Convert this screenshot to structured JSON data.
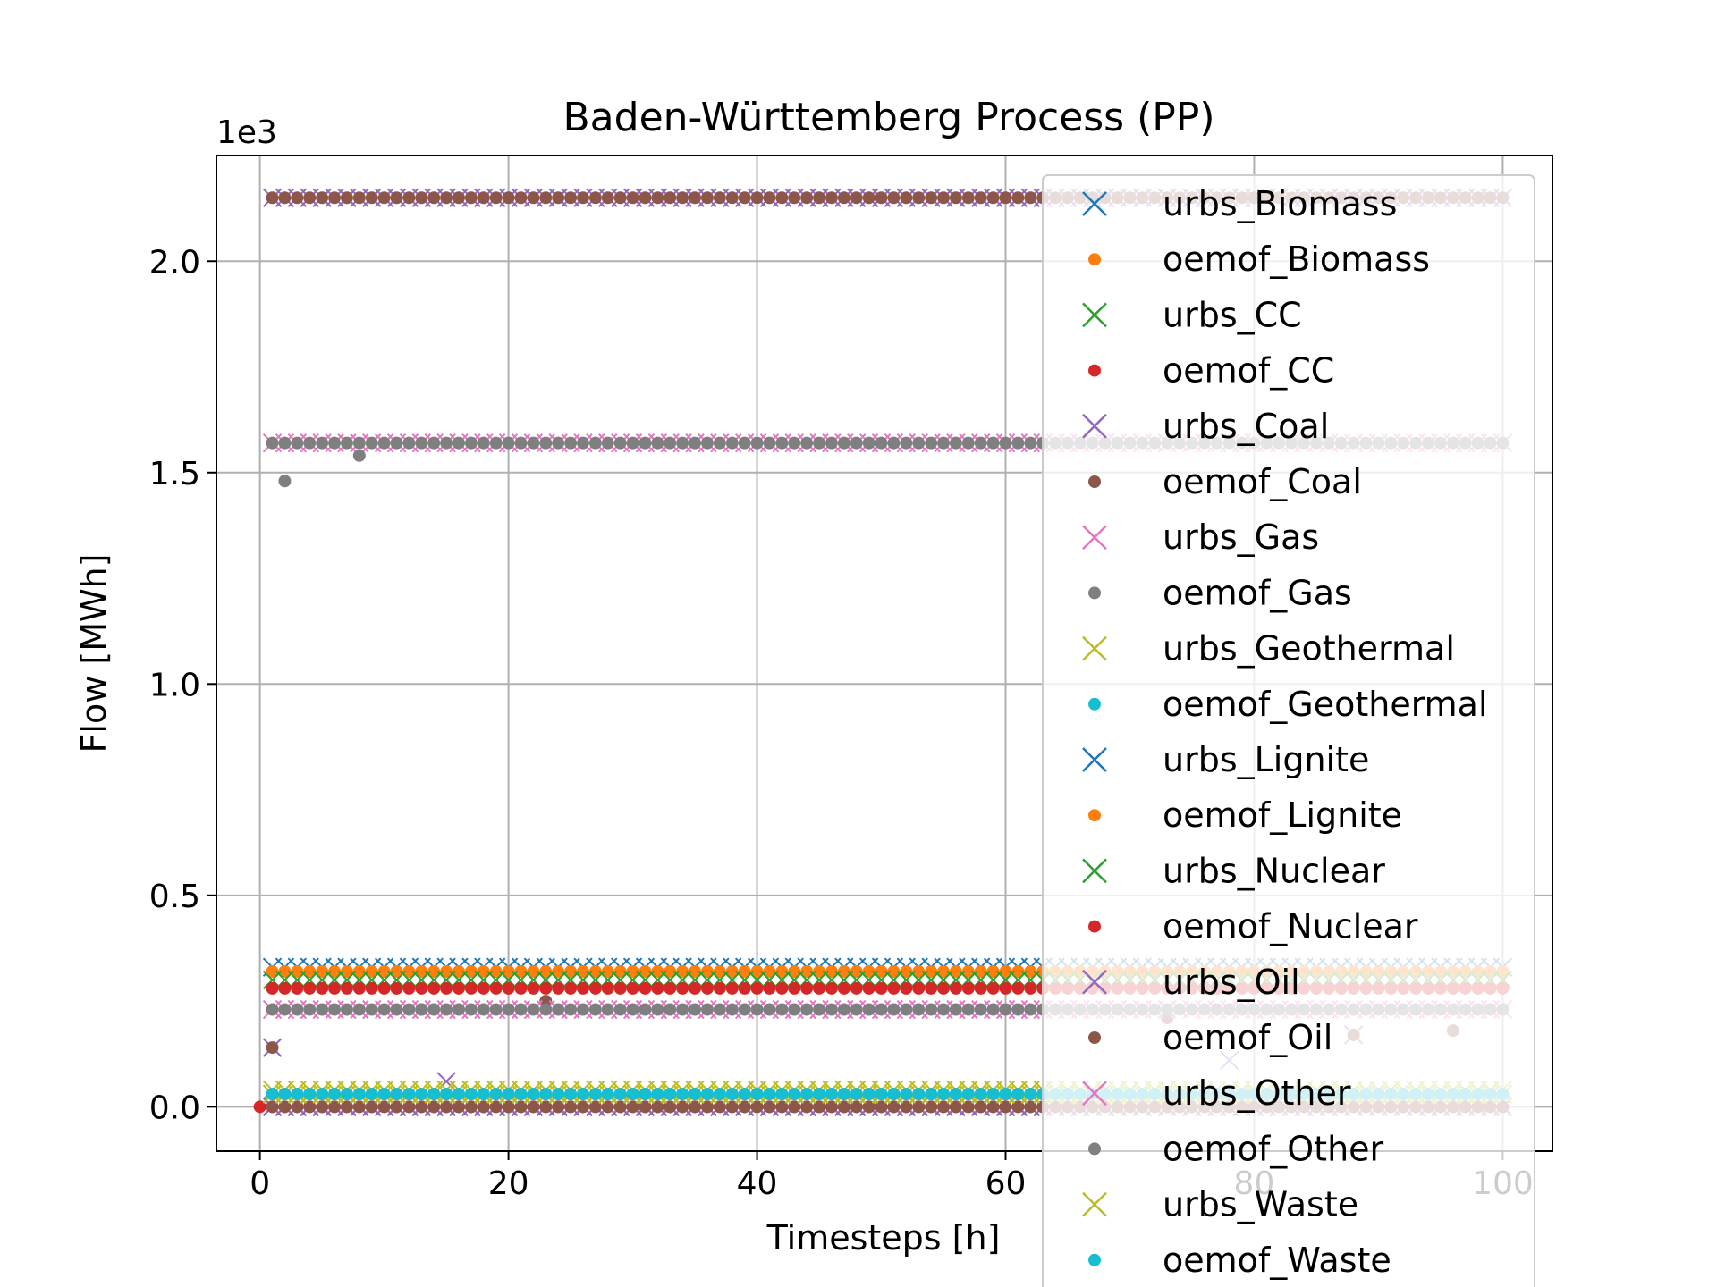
{
  "chart_data": {
    "type": "scatter",
    "title": "Baden-Württemberg Process (PP)",
    "xlabel": "Timesteps [h]",
    "ylabel": "Flow [MWh]",
    "y_multiplier_label": "1e3",
    "xlim": [
      -3.5,
      104
    ],
    "ylim": [
      -0.105,
      2.25
    ],
    "xticks": [
      0,
      20,
      40,
      60,
      80,
      100
    ],
    "yticks": [
      0.0,
      0.5,
      1.0,
      1.5,
      2.0
    ],
    "xtick_labels": [
      "0",
      "20",
      "40",
      "60",
      "80",
      "100"
    ],
    "ytick_labels": [
      "0.0",
      "0.5",
      "1.0",
      "1.5",
      "2.0"
    ],
    "grid": true,
    "legend_placement": "top-right",
    "x_range": [
      1,
      100
    ],
    "series": [
      {
        "name": "urbs_Biomass",
        "marker": "x",
        "color": "#1f77b4",
        "level": 0.33
      },
      {
        "name": "oemof_Biomass",
        "marker": "o",
        "color": "#ff7f0e",
        "level": 0.32
      },
      {
        "name": "urbs_CC",
        "marker": "x",
        "color": "#2ca02c",
        "level": 0.3
      },
      {
        "name": "oemof_CC",
        "marker": "o",
        "color": "#d62728",
        "level": 0.28,
        "outliers": [
          [
            0.0,
            0.0
          ]
        ]
      },
      {
        "name": "urbs_Coal",
        "marker": "x",
        "color": "#9467bd",
        "level": 2.15,
        "outliers": [
          [
            1,
            0.14
          ],
          [
            15,
            0.06
          ],
          [
            78,
            0.11
          ],
          [
            88,
            0.17
          ]
        ]
      },
      {
        "name": "oemof_Coal",
        "marker": "o",
        "color": "#8c564b",
        "level": 2.15,
        "outliers": [
          [
            1,
            0.14
          ],
          [
            13,
            0.23
          ],
          [
            23,
            0.25
          ],
          [
            73,
            0.21
          ],
          [
            88,
            0.17
          ],
          [
            96,
            0.18
          ]
        ]
      },
      {
        "name": "urbs_Gas",
        "marker": "x",
        "color": "#e377c2",
        "level": 1.57
      },
      {
        "name": "oemof_Gas",
        "marker": "o",
        "color": "#7f7f7f",
        "level": 1.57,
        "outliers": [
          [
            2,
            1.48
          ],
          [
            8,
            1.54
          ]
        ]
      },
      {
        "name": "urbs_Geothermal",
        "marker": "x",
        "color": "#bcbd22",
        "level": 0.04
      },
      {
        "name": "oemof_Geothermal",
        "marker": "o",
        "color": "#17becf",
        "level": 0.03
      },
      {
        "name": "urbs_Lignite",
        "marker": "x",
        "color": "#1f77b4",
        "level": 0.0
      },
      {
        "name": "oemof_Lignite",
        "marker": "o",
        "color": "#ff7f0e",
        "level": 0.0
      },
      {
        "name": "urbs_Nuclear",
        "marker": "x",
        "color": "#2ca02c",
        "level": 0.0
      },
      {
        "name": "oemof_Nuclear",
        "marker": "o",
        "color": "#d62728",
        "level": 0.0
      },
      {
        "name": "urbs_Oil",
        "marker": "x",
        "color": "#9467bd",
        "level": 0.0
      },
      {
        "name": "oemof_Oil",
        "marker": "o",
        "color": "#8c564b",
        "level": 0.0
      },
      {
        "name": "urbs_Other",
        "marker": "x",
        "color": "#e377c2",
        "level": 0.23
      },
      {
        "name": "oemof_Other",
        "marker": "o",
        "color": "#7f7f7f",
        "level": 0.23
      },
      {
        "name": "urbs_Waste",
        "marker": "x",
        "color": "#bcbd22",
        "level": 0.03
      },
      {
        "name": "oemof_Waste",
        "marker": "o",
        "color": "#17becf",
        "level": 0.03
      }
    ]
  }
}
